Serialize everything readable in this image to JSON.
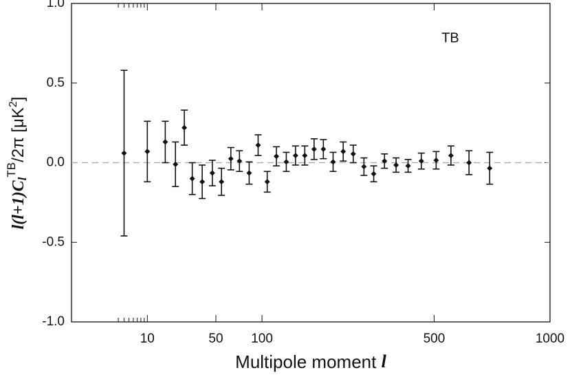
{
  "chart_data": {
    "type": "errorbar",
    "annotation": "TB",
    "xlabel": [
      "Multipole moment",
      "l"
    ],
    "ylabel": [
      "l(l+1)C",
      "l",
      "TB",
      "/2π [μK",
      "2",
      "]"
    ],
    "xscale": "power",
    "xpower": 0.4,
    "xlim": [
      0,
      1000
    ],
    "xticks": [
      10,
      50,
      100,
      500,
      1000
    ],
    "xminorticks": [
      3,
      4,
      5,
      6,
      7,
      8,
      9
    ],
    "ylim": [
      -1,
      1
    ],
    "yticks": [
      {
        "value": -1,
        "label": "-1.0"
      },
      {
        "value": -0.5,
        "label": "-0.5"
      },
      {
        "value": 0,
        "label": "0.0"
      },
      {
        "value": 0.5,
        "label": "0.5"
      },
      {
        "value": 1,
        "label": "1.0"
      }
    ],
    "zero_line": true,
    "color": "#111111",
    "x": [
      4,
      10,
      17,
      22,
      27,
      32,
      39,
      47,
      55,
      64,
      73,
      84,
      95,
      107,
      120,
      135,
      150,
      166,
      183,
      201,
      221,
      243,
      266,
      292,
      317,
      346,
      379,
      415,
      457,
      507,
      560,
      629,
      714
    ],
    "values": [
      0.06,
      0.07,
      0.13,
      -0.01,
      0.22,
      -0.1,
      -0.12,
      -0.065,
      -0.12,
      0.025,
      0.01,
      -0.065,
      0.11,
      -0.12,
      0.04,
      0.005,
      0.045,
      0.045,
      0.085,
      0.085,
      0.005,
      0.07,
      0.055,
      -0.025,
      -0.07,
      0.01,
      -0.015,
      -0.02,
      0.01,
      0.015,
      0.045,
      0.0,
      -0.035
    ],
    "errors": [
      0.52,
      0.19,
      0.13,
      0.14,
      0.11,
      0.1,
      0.105,
      0.08,
      0.085,
      0.07,
      0.065,
      0.07,
      0.065,
      0.065,
      0.06,
      0.06,
      0.06,
      0.06,
      0.065,
      0.06,
      0.06,
      0.06,
      0.055,
      0.055,
      0.05,
      0.045,
      0.045,
      0.04,
      0.05,
      0.055,
      0.06,
      0.075,
      0.1
    ]
  }
}
